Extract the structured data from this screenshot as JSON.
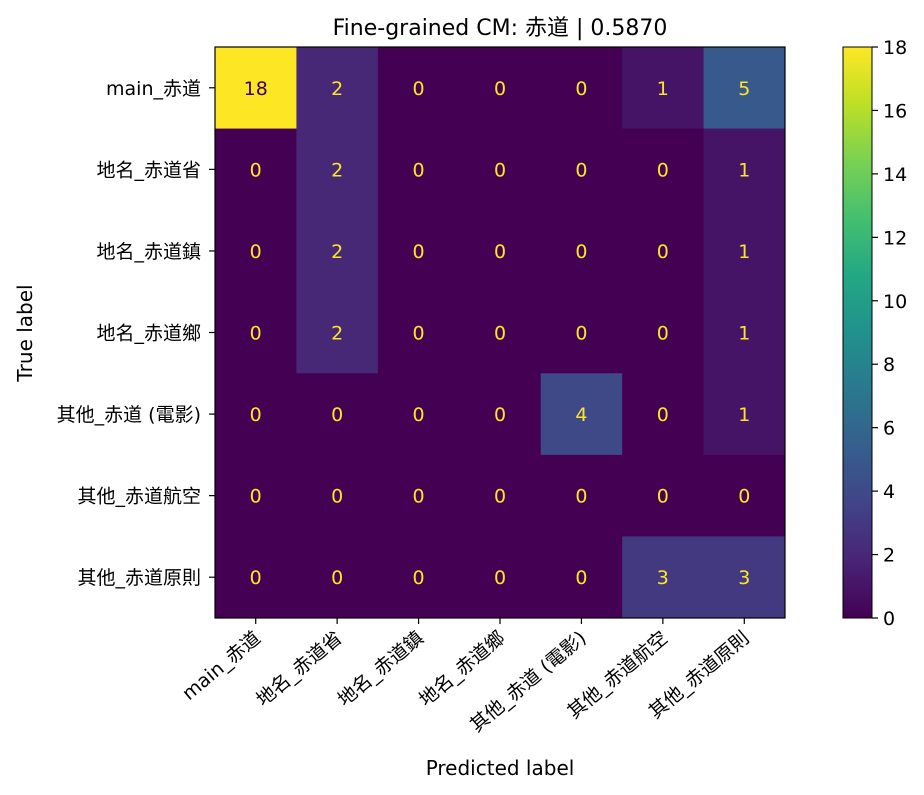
{
  "chart_data": {
    "type": "heatmap",
    "title": "Fine-grained CM: 赤道 | 0.5870",
    "xlabel": "Predicted label",
    "ylabel": "True label",
    "categories": [
      "main_赤道",
      "地名_赤道省",
      "地名_赤道鎮",
      "地名_赤道鄉",
      "其他_赤道 (電影)",
      "其他_赤道航空",
      "其他_赤道原則"
    ],
    "matrix": [
      [
        18,
        2,
        0,
        0,
        0,
        1,
        5
      ],
      [
        0,
        2,
        0,
        0,
        0,
        0,
        1
      ],
      [
        0,
        2,
        0,
        0,
        0,
        0,
        1
      ],
      [
        0,
        2,
        0,
        0,
        0,
        0,
        1
      ],
      [
        0,
        0,
        0,
        0,
        4,
        0,
        1
      ],
      [
        0,
        0,
        0,
        0,
        0,
        0,
        0
      ],
      [
        0,
        0,
        0,
        0,
        0,
        3,
        3
      ]
    ],
    "colormap": "viridis",
    "colorbar": {
      "range": [
        0,
        18
      ],
      "ticks": [
        0,
        2,
        4,
        6,
        8,
        10,
        12,
        14,
        16,
        18
      ]
    },
    "low_text_color": "#fde725",
    "high_text_color": "#440154"
  }
}
